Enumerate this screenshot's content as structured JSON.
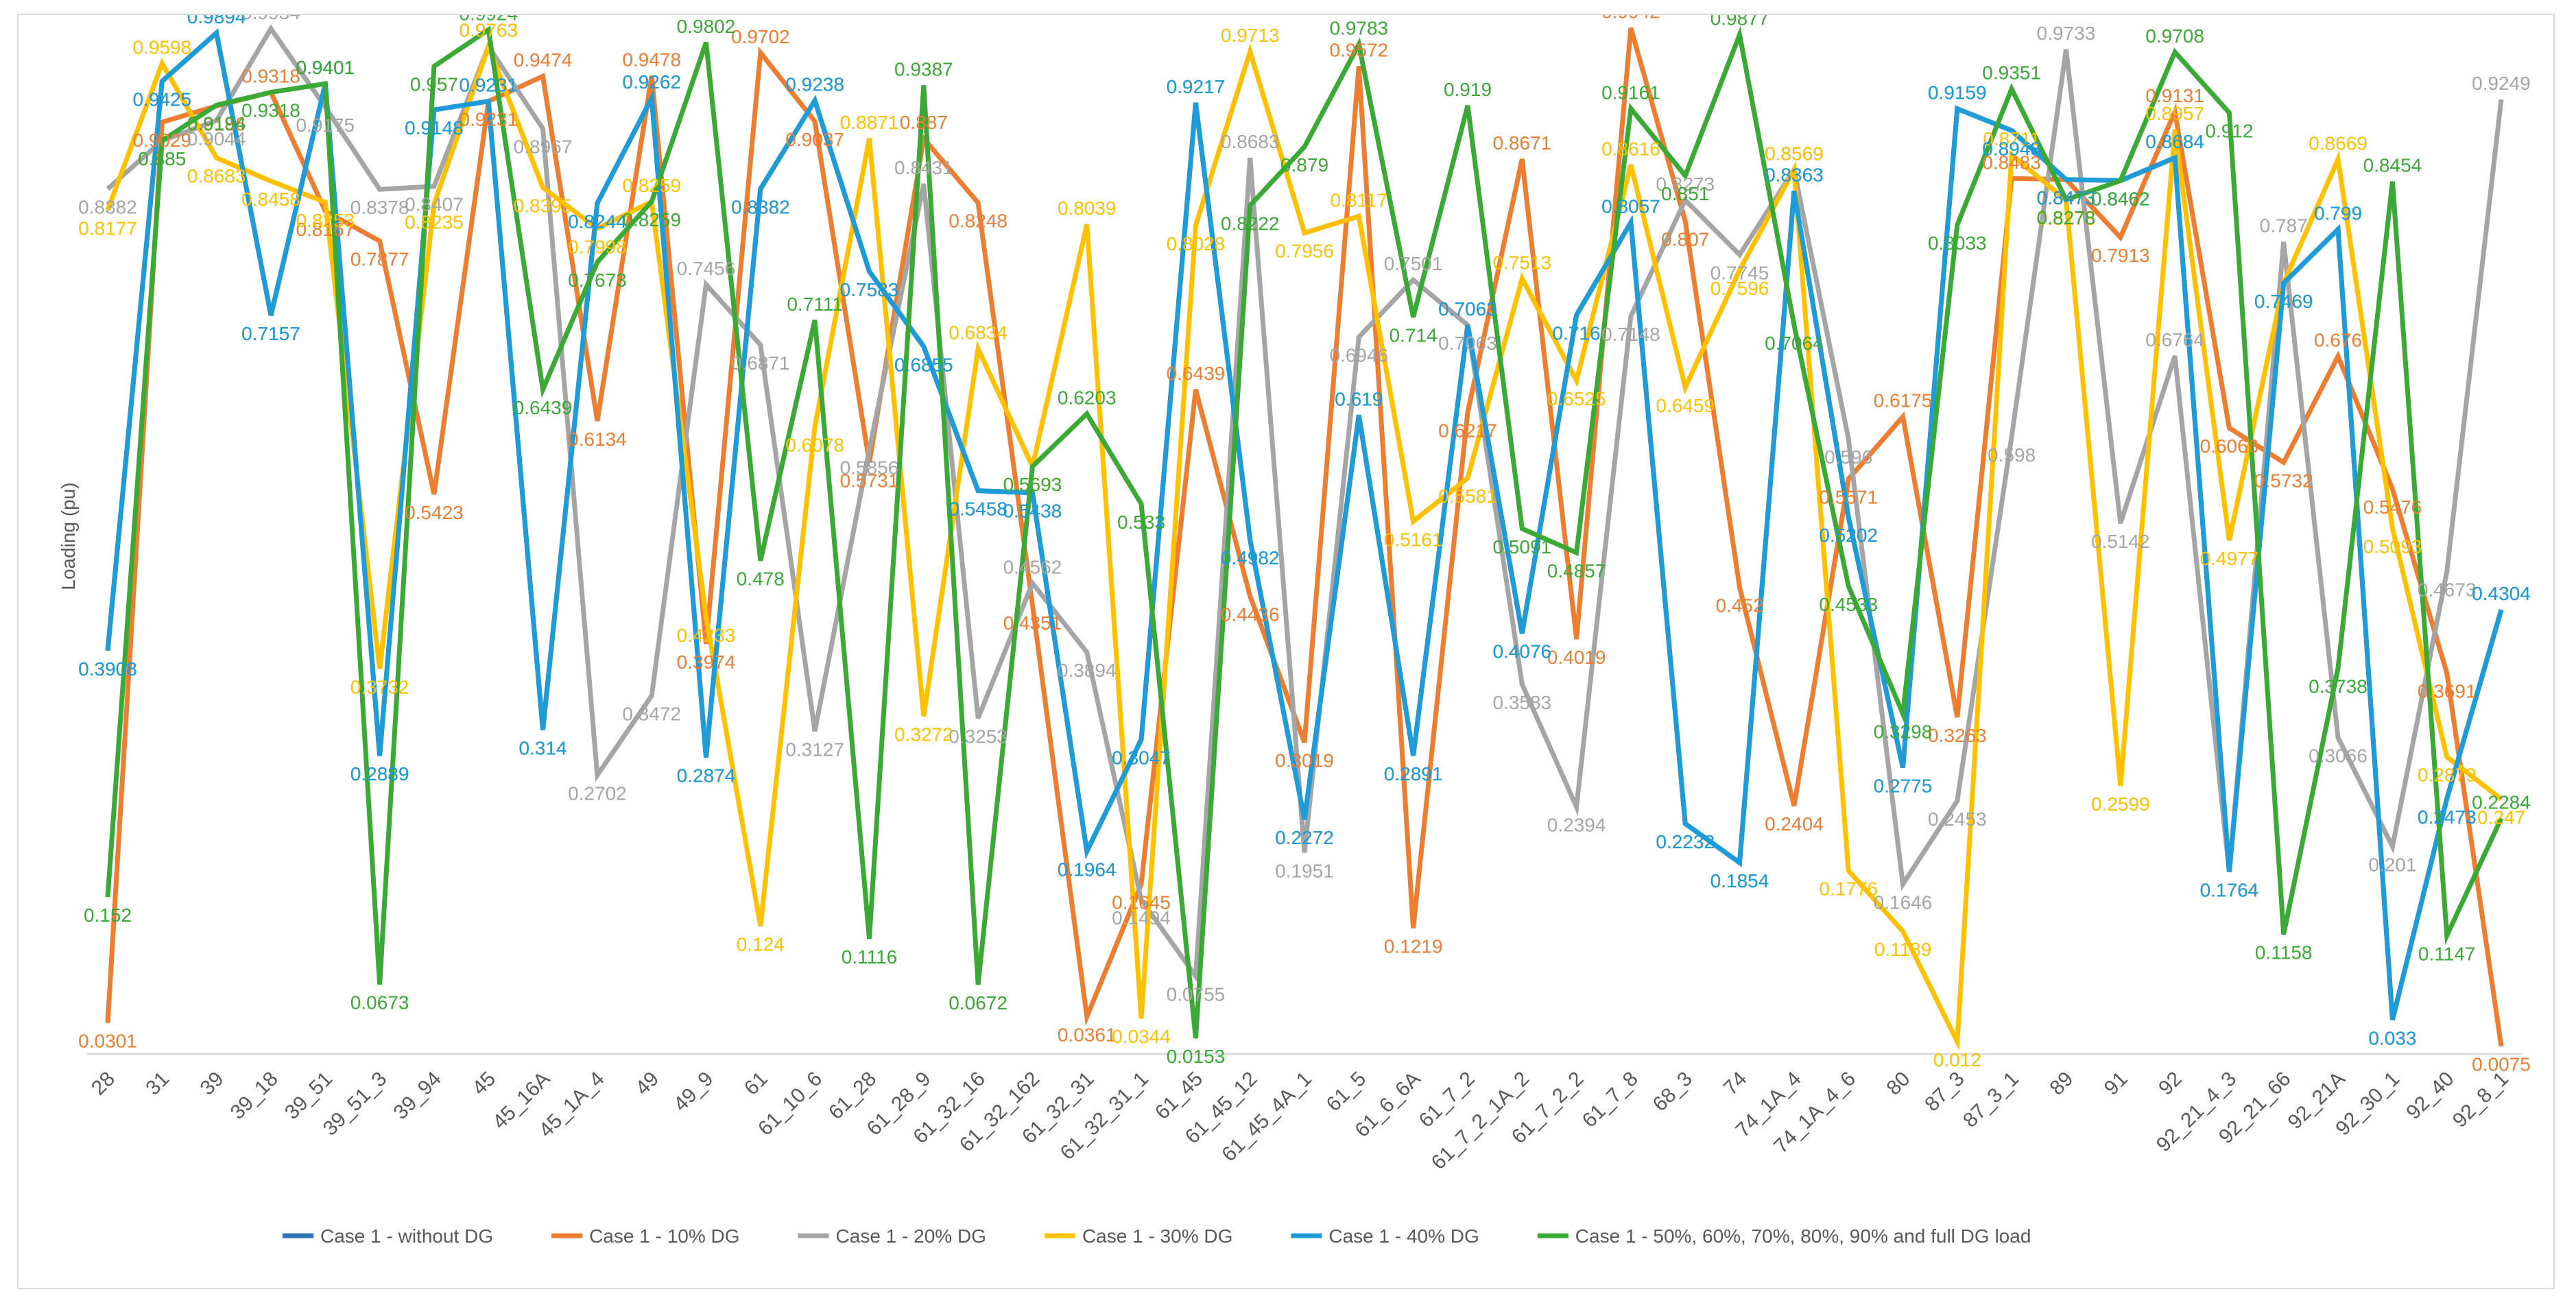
{
  "chart_data": {
    "type": "line",
    "title": "",
    "xlabel": "",
    "ylabel": "Loading (pu)",
    "ylim": [
      0,
      1
    ],
    "grid": false,
    "legend_position": "bottom",
    "categories": [
      "28",
      "31",
      "39",
      "39_18",
      "39_51",
      "39_51_3",
      "39_94",
      "45",
      "45_16A",
      "45_1A_4",
      "49",
      "49_9",
      "61",
      "61_10_6",
      "61_28",
      "61_28_9",
      "61_32_16",
      "61_32_162",
      "61_32_31",
      "61_32_31_1",
      "61_45",
      "61_45_12",
      "61_45_4A_1",
      "61_5",
      "61_6_6A",
      "61_7_2",
      "61_7_2_1A_2",
      "61_7_2_2",
      "61_7_8",
      "68_3",
      "74",
      "74_1A_4",
      "74_1A_4_6",
      "80",
      "87_3",
      "87_3_1",
      "89",
      "91",
      "92",
      "92_21_4_3",
      "92_21_66",
      "92_21A",
      "92_30_1",
      "92_40",
      "92_8_1"
    ],
    "series": [
      {
        "name": "Case 1 - without DG",
        "color": "#2e75b6",
        "values": [
          0.3908,
          0.9425,
          0.9894,
          0.7157,
          0.9401,
          0.2889,
          0.9148,
          0.9231,
          0.314,
          0.8244,
          0.9262,
          0.2874,
          0.8382,
          0.9238,
          0.7583,
          0.6855,
          0.5458,
          0.5438,
          0.1964,
          0.3047,
          0.9217,
          0.4982,
          0.2272,
          0.619,
          0.2891,
          0.7063,
          0.4076,
          0.716,
          0.8057,
          0.2232,
          0.1854,
          0.8363,
          0.5202,
          0.2775,
          0.9159,
          0.8948,
          0.8473,
          0.8462,
          0.8684,
          0.1764,
          0.7469,
          0.799,
          0.033,
          0.2473,
          0.4304
        ]
      },
      {
        "name": "Case 1 - 10% DG",
        "color": "#ed7d31",
        "values": [
          0.0301,
          0.9029,
          0.9186,
          0.9318,
          0.8167,
          0.7877,
          0.5423,
          0.9231,
          0.9474,
          0.6134,
          0.9478,
          0.3974,
          0.9702,
          0.9037,
          0.5731,
          0.887,
          0.8248,
          0.4351,
          0.0361,
          0.1645,
          0.6439,
          0.4436,
          0.3019,
          0.9572,
          0.1219,
          0.6217,
          0.8671,
          0.4019,
          0.9942,
          0.807,
          0.452,
          0.2404,
          0.5571,
          0.6175,
          0.3263,
          0.8483,
          0.8473,
          0.7913,
          0.9131,
          0.6066,
          0.5732,
          0.676,
          0.5476,
          0.3691,
          0.0075
        ]
      },
      {
        "name": "Case 1 - 20% DG",
        "color": "#a5a5a5",
        "values": [
          0.8382,
          0.885,
          0.9044,
          0.9934,
          0.9175,
          0.8378,
          0.8407,
          0.9763,
          0.8967,
          0.2702,
          0.3472,
          0.7456,
          0.6871,
          0.3127,
          0.5856,
          0.8431,
          0.3253,
          0.4562,
          0.3894,
          0.1494,
          0.0755,
          0.8683,
          0.1951,
          0.6946,
          0.7501,
          0.7063,
          0.3583,
          0.2394,
          0.7148,
          0.8273,
          0.7745,
          0.8569,
          0.596,
          0.1646,
          0.2453,
          0.598,
          0.9733,
          0.5142,
          0.6764,
          0.1764,
          0.787,
          0.3066,
          0.201,
          0.4673,
          0.9249
        ]
      },
      {
        "name": "Case 1 - 30% DG",
        "color": "#ffc000",
        "values": [
          0.8177,
          0.9598,
          0.8683,
          0.8458,
          0.8253,
          0.3732,
          0.8235,
          0.9763,
          0.8395,
          0.7998,
          0.8259,
          0.4233,
          0.124,
          0.6078,
          0.8871,
          0.3272,
          0.6834,
          0.5693,
          0.8039,
          0.0344,
          0.8028,
          0.9713,
          0.7956,
          0.8117,
          0.5161,
          0.5581,
          0.7513,
          0.6525,
          0.8616,
          0.6459,
          0.7596,
          0.8569,
          0.1776,
          0.1189,
          0.012,
          0.8711,
          0.8273,
          0.2599,
          0.8957,
          0.4977,
          0.7469,
          0.8669,
          0.5093,
          0.2879,
          0.247
        ]
      },
      {
        "name": "Case 1 - 40% DG",
        "color": "#1f9bd7",
        "values": [
          0.3908,
          0.9425,
          0.9894,
          0.7157,
          0.9401,
          0.2889,
          0.9148,
          0.9231,
          0.314,
          0.8244,
          0.9262,
          0.2874,
          0.8382,
          0.9238,
          0.7583,
          0.6855,
          0.5458,
          0.5438,
          0.1964,
          0.3047,
          0.9217,
          0.4982,
          0.2272,
          0.619,
          0.2891,
          0.7063,
          0.4076,
          0.716,
          0.8057,
          0.2232,
          0.1854,
          0.8363,
          0.5202,
          0.2775,
          0.9159,
          0.8948,
          0.8473,
          0.8462,
          0.8684,
          0.1764,
          0.7469,
          0.799,
          0.033,
          0.2473,
          0.4304
        ]
      },
      {
        "name": "Case 1 - 50%, 60%, 70%, 80%, 90% and full DG load",
        "color": "#3aa935",
        "values": [
          0.152,
          0.885,
          0.9194,
          0.9318,
          0.9401,
          0.0673,
          0.957,
          0.9924,
          0.6439,
          0.7673,
          0.8259,
          0.9802,
          0.478,
          0.7111,
          0.1116,
          0.9387,
          0.0672,
          0.5693,
          0.6203,
          0.533,
          0.0153,
          0.8222,
          0.879,
          0.9783,
          0.714,
          0.919,
          0.5091,
          0.4857,
          0.9161,
          0.851,
          0.9877,
          0.7064,
          0.4533,
          0.3298,
          0.8033,
          0.9351,
          0.8278,
          0.8462,
          0.9708,
          0.912,
          0.1158,
          0.3738,
          0.8454,
          0.1147,
          0.2284
        ]
      }
    ]
  }
}
